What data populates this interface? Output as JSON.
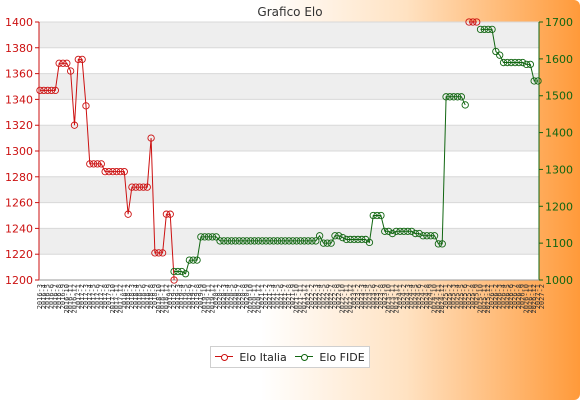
{
  "chart_data": {
    "type": "line",
    "title": "Grafico Elo",
    "grid": true,
    "legend_position": "bottom",
    "left_axis": {
      "ylim": [
        1200,
        1400
      ],
      "ticks": [
        "1200",
        "1220",
        "1240",
        "1260",
        "1280",
        "1300",
        "1320",
        "1340",
        "1360",
        "1380",
        "1400"
      ],
      "color": "#cc1111"
    },
    "right_axis": {
      "ylim": [
        1000,
        1700
      ],
      "ticks": [
        "1000",
        "1100",
        "1200",
        "1300",
        "1400",
        "1500",
        "1600",
        "1700"
      ],
      "color": "#116611"
    },
    "series": [
      {
        "name": "Elo Italia",
        "axis": "left",
        "color": "#cc1111",
        "x_start": 0,
        "values": [
          1347,
          1347,
          1347,
          1347,
          1347,
          1368,
          1368,
          1368,
          1362,
          1320,
          1371,
          1371,
          1335,
          1290,
          1290,
          1290,
          1290,
          1284,
          1284,
          1284,
          1284,
          1284,
          1284,
          1251,
          1272,
          1272,
          1272,
          1272,
          1272,
          1310,
          1221,
          1221,
          1221,
          1251,
          1251,
          1200
        ]
      },
      {
        "name": "Elo FIDE",
        "axis": "right",
        "color": "#116611",
        "x_start": 35,
        "values": [
          1023,
          1023,
          1023,
          1017,
          1054,
          1054,
          1054,
          1117,
          1117,
          1117,
          1117,
          1117,
          1106,
          1106,
          1106,
          1106,
          1106,
          1106,
          1106,
          1106,
          1106,
          1106,
          1106,
          1106,
          1106,
          1106,
          1106,
          1106,
          1106,
          1106,
          1106,
          1106,
          1106,
          1106,
          1106,
          1106,
          1106,
          1106,
          1120,
          1100,
          1100,
          1100,
          1120,
          1120,
          1115,
          1110,
          1110,
          1110,
          1110,
          1110,
          1110,
          1102,
          1175,
          1175,
          1175,
          1132,
          1132,
          1126,
          1132,
          1132,
          1132,
          1132,
          1132,
          1126,
          1126,
          1120,
          1120,
          1120,
          1120,
          1098,
          1098,
          1497,
          1497,
          1497,
          1497,
          1497,
          1475
        ]
      },
      {
        "name": "",
        "axis": "right",
        "color": "#cc1111",
        "x_start": 112,
        "values": [
          1700,
          1700,
          1700
        ]
      },
      {
        "name": "",
        "axis": "right",
        "color": "#116611",
        "x_start": 115,
        "values": [
          1680,
          1680,
          1680,
          1680,
          1620,
          1610,
          1590,
          1590,
          1590,
          1590,
          1590,
          1590,
          1585,
          1585,
          1540,
          1540
        ]
      }
    ],
    "x_count": 131,
    "x_labels": [
      "2016-3",
      "2016-4",
      "2016-5",
      "2016-6",
      "2016-7",
      "2016-8",
      "2016-9",
      "2016-10",
      "2016-11",
      "2016-12",
      "2017-1",
      "2017-2",
      "2017-3",
      "2017-4",
      "2017-5",
      "2017-6",
      "2017-7",
      "2017-8",
      "2017-9",
      "2017-10",
      "2017-11",
      "2017-12",
      "2018-1",
      "2018-2",
      "2018-3",
      "2018-4",
      "2018-5",
      "2018-6",
      "2018-7",
      "2018-8",
      "2018-9",
      "2018-10",
      "2018-11",
      "2018-12",
      "2019-1",
      "2019-2",
      "2019-3",
      "2019-4",
      "2019-5",
      "2019-6",
      "2019-7",
      "2019-8",
      "2019-9",
      "2019-10",
      "2019-11",
      "2019-12",
      "2020-1",
      "2020-2",
      "2020-3",
      "2020-4",
      "2020-5",
      "2020-6",
      "2020-7",
      "2020-8",
      "2020-9",
      "2020-10",
      "2020-11",
      "2020-12",
      "2021-1",
      "2021-2",
      "2021-3",
      "2021-4",
      "2021-5",
      "2021-6",
      "2021-7",
      "2021-8",
      "2021-9",
      "2021-10",
      "2021-11",
      "2021-12",
      "2022-1",
      "2022-2",
      "2022-3",
      "2022-4",
      "2022-5",
      "2022-6",
      "2022-7",
      "2022-8",
      "2022-9",
      "2022-10",
      "2022-11",
      "2022-12",
      "2023-1",
      "2023-2",
      "2023-3",
      "2023-4",
      "2023-5",
      "2023-6",
      "2023-7",
      "2023-8",
      "2023-9",
      "2023-10",
      "2023-11",
      "2023-12",
      "2024-1",
      "2024-2",
      "2024-3",
      "2024-4",
      "2024-5",
      "2024-6",
      "2024-7",
      "2024-8",
      "2024-9",
      "2024-10",
      "2024-11",
      "2024-12",
      "2025-1",
      "2025-2",
      "2025-3",
      "2025-4",
      "2025-5",
      "2025-6",
      "2025-7",
      "2025-8",
      "2025-9",
      "2025-10",
      "2025-11",
      "2025-12",
      "2026-1",
      "2026-2",
      "2026-3",
      "2026-4",
      "2026-5",
      "2026-6",
      "2026-7",
      "2026-8",
      "2026-9",
      "2026-10",
      "2026-11",
      "2026-12",
      "2027-1",
      "2027-2"
    ]
  },
  "legend": {
    "italia_label": "Elo Italia",
    "fide_label": "Elo FIDE"
  }
}
